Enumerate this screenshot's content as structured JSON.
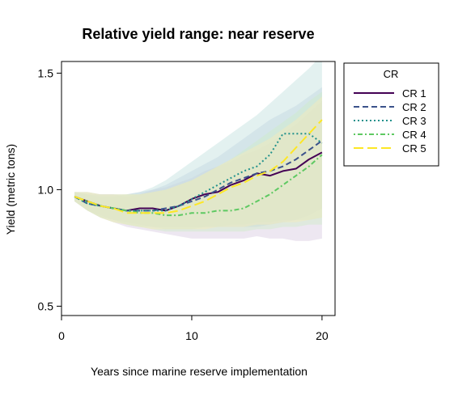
{
  "chart_data": {
    "type": "line",
    "title": "Relative yield range: near reserve",
    "xlabel": "Years since marine reserve implementation",
    "ylabel": "Yield (metric tons)",
    "xlim": [
      0,
      21
    ],
    "ylim": [
      0.46,
      1.55
    ],
    "xticks": [
      0,
      10,
      20
    ],
    "yticks": [
      0.5,
      1.0,
      1.5
    ],
    "xtick_labels": [
      "0",
      "10",
      "20"
    ],
    "ytick_labels": [
      "0.5",
      "1.0",
      "1.5"
    ],
    "grid": false,
    "legend": {
      "title": "CR",
      "position": "right-top"
    },
    "x": [
      1,
      2,
      3,
      4,
      5,
      6,
      7,
      8,
      9,
      10,
      11,
      12,
      13,
      14,
      15,
      16,
      17,
      18,
      19,
      20
    ],
    "series": [
      {
        "name": "CR 1",
        "color": "#440154",
        "dash": "solid",
        "values": [
          0.97,
          0.95,
          0.93,
          0.92,
          0.91,
          0.92,
          0.92,
          0.91,
          0.93,
          0.96,
          0.98,
          0.99,
          1.02,
          1.04,
          1.07,
          1.06,
          1.08,
          1.09,
          1.13,
          1.16
        ],
        "lower": [
          0.95,
          0.91,
          0.88,
          0.86,
          0.84,
          0.83,
          0.82,
          0.81,
          0.8,
          0.79,
          0.79,
          0.79,
          0.79,
          0.79,
          0.8,
          0.79,
          0.79,
          0.78,
          0.78,
          0.79
        ],
        "upper": [
          0.99,
          0.99,
          0.98,
          0.98,
          0.97,
          0.98,
          1.0,
          1.01,
          1.03,
          1.05,
          1.08,
          1.1,
          1.12,
          1.15,
          1.17,
          1.2,
          1.24,
          1.28,
          1.33,
          1.38
        ],
        "fill": "#d6c9e0"
      },
      {
        "name": "CR 2",
        "color": "#3b528b",
        "dash": "dashed",
        "values": [
          0.97,
          0.94,
          0.93,
          0.92,
          0.91,
          0.91,
          0.91,
          0.92,
          0.93,
          0.95,
          0.97,
          1.0,
          1.03,
          1.05,
          1.07,
          1.08,
          1.1,
          1.13,
          1.17,
          1.21
        ],
        "lower": [
          0.95,
          0.91,
          0.89,
          0.87,
          0.86,
          0.85,
          0.84,
          0.84,
          0.84,
          0.84,
          0.84,
          0.84,
          0.84,
          0.84,
          0.84,
          0.85,
          0.86,
          0.87,
          0.89,
          0.92
        ],
        "upper": [
          0.99,
          0.98,
          0.98,
          0.98,
          0.98,
          0.99,
          1.0,
          1.02,
          1.05,
          1.08,
          1.11,
          1.14,
          1.18,
          1.22,
          1.26,
          1.3,
          1.33,
          1.36,
          1.4,
          1.44
        ],
        "fill": "#c4cfe2"
      },
      {
        "name": "CR 3",
        "color": "#21918c",
        "dash": "dotted",
        "values": [
          0.97,
          0.94,
          0.93,
          0.92,
          0.91,
          0.91,
          0.91,
          0.91,
          0.93,
          0.96,
          0.99,
          1.02,
          1.05,
          1.08,
          1.1,
          1.15,
          1.24,
          1.24,
          1.24,
          1.2
        ],
        "lower": [
          0.95,
          0.91,
          0.88,
          0.87,
          0.85,
          0.84,
          0.84,
          0.83,
          0.83,
          0.83,
          0.84,
          0.84,
          0.85,
          0.85,
          0.86,
          0.86,
          0.87,
          0.87,
          0.87,
          0.88
        ],
        "upper": [
          0.99,
          0.98,
          0.97,
          0.97,
          0.98,
          0.99,
          1.01,
          1.04,
          1.08,
          1.12,
          1.16,
          1.2,
          1.24,
          1.28,
          1.32,
          1.37,
          1.42,
          1.47,
          1.52,
          1.58
        ],
        "fill": "#c2e0de"
      },
      {
        "name": "CR 4",
        "color": "#5ec962",
        "dash": "dashdot",
        "values": [
          0.97,
          0.95,
          0.93,
          0.92,
          0.91,
          0.9,
          0.9,
          0.89,
          0.89,
          0.9,
          0.9,
          0.91,
          0.91,
          0.92,
          0.95,
          0.98,
          1.02,
          1.06,
          1.1,
          1.15
        ],
        "lower": [
          0.95,
          0.91,
          0.88,
          0.86,
          0.85,
          0.84,
          0.83,
          0.82,
          0.82,
          0.82,
          0.82,
          0.82,
          0.82,
          0.82,
          0.83,
          0.83,
          0.84,
          0.84,
          0.85,
          0.85
        ],
        "upper": [
          0.99,
          0.99,
          0.98,
          0.98,
          0.98,
          0.98,
          0.99,
          1.0,
          1.02,
          1.04,
          1.07,
          1.1,
          1.13,
          1.17,
          1.21,
          1.25,
          1.29,
          1.33,
          1.38,
          1.42
        ],
        "fill": "#cfeac8"
      },
      {
        "name": "CR 5",
        "color": "#fde725",
        "dash": "longdash",
        "values": [
          0.97,
          0.95,
          0.93,
          0.92,
          0.9,
          0.9,
          0.9,
          0.9,
          0.91,
          0.93,
          0.95,
          0.98,
          1.01,
          1.03,
          1.06,
          1.08,
          1.12,
          1.18,
          1.24,
          1.3
        ],
        "lower": [
          0.95,
          0.91,
          0.88,
          0.86,
          0.85,
          0.84,
          0.83,
          0.83,
          0.83,
          0.83,
          0.83,
          0.84,
          0.84,
          0.84,
          0.85,
          0.85,
          0.86,
          0.86,
          0.87,
          0.88
        ],
        "upper": [
          0.99,
          0.99,
          0.98,
          0.98,
          0.98,
          0.98,
          0.99,
          1.0,
          1.02,
          1.04,
          1.07,
          1.1,
          1.13,
          1.16,
          1.19,
          1.22,
          1.26,
          1.3,
          1.35,
          1.4
        ],
        "fill": "#f6ecb8"
      }
    ]
  }
}
